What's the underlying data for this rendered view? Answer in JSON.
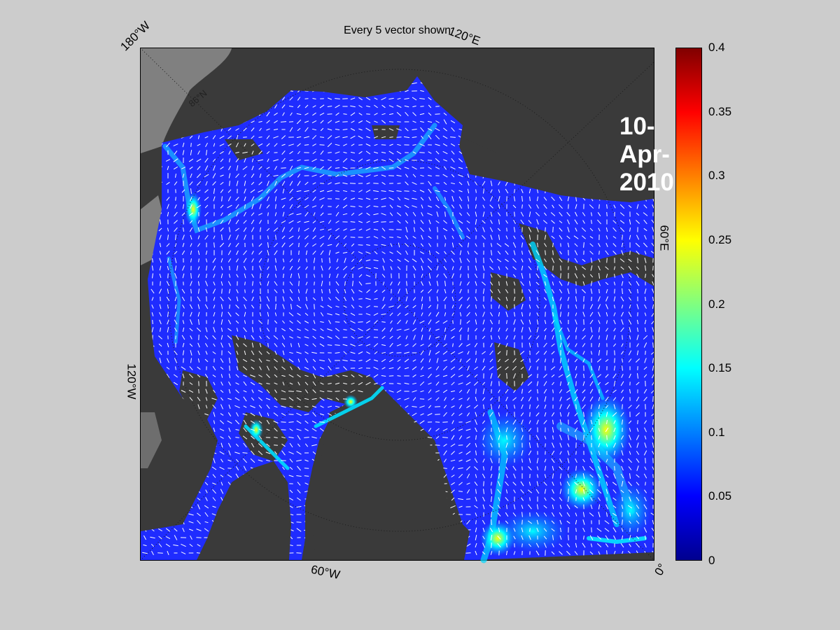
{
  "title": "Every 5 vector shown",
  "date_label": "10-Apr-2010",
  "graticule_labels": {
    "lon_180w": "180°W",
    "lon_120e": "120°E",
    "lon_60e": "60°E",
    "lon_120w": "120°W",
    "lon_60w": "60°W",
    "lon_0": "0°",
    "lat_86n": "86°N"
  },
  "colorbar": {
    "min": 0,
    "max": 0.4,
    "ticks": [
      "0.4",
      "0.35",
      "0.3",
      "0.25",
      "0.2",
      "0.15",
      "0.1",
      "0.05",
      "0"
    ],
    "colormap": "jet"
  },
  "colors": {
    "figure_bg": "#cccccc",
    "land": "#3a3a3a",
    "ocean_out_of_domain": "#808080",
    "sea_ice_low": "#1a2aff",
    "vector_color": "#ffffff",
    "date_text": "#ffffff"
  }
}
